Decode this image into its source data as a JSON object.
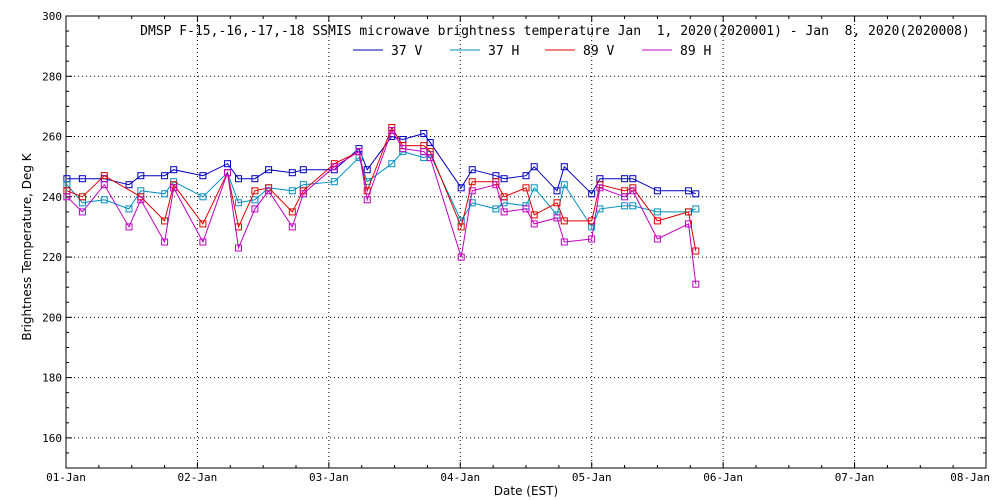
{
  "chart_data": {
    "type": "line",
    "title": "DMSP F-15,-16,-17,-18 SSMIS microwave brightness temperature Jan  1, 2020(2020001) - Jan  8, 2020(2020008)",
    "xlabel": "Date (EST)",
    "ylabel": "Brightness Temperature, Deg K",
    "xlim": [
      "2020-01-01 00:00",
      "2020-01-08 00:00"
    ],
    "ylim": [
      150,
      300
    ],
    "x_ticks": [
      "01-Jan",
      "02-Jan",
      "03-Jan",
      "04-Jan",
      "05-Jan",
      "06-Jan",
      "07-Jan",
      "08-Jan"
    ],
    "y_ticks": [
      160,
      180,
      200,
      220,
      240,
      260,
      280,
      300
    ],
    "grid": true,
    "legend_position": "top",
    "series": [
      {
        "name": "37 V",
        "color": "#0000c0",
        "points": [
          [
            "2020-01-01 00:10",
            246
          ],
          [
            "2020-01-01 03:00",
            246
          ],
          [
            "2020-01-01 07:00",
            246
          ],
          [
            "2020-01-01 11:30",
            244
          ],
          [
            "2020-01-01 13:40",
            247
          ],
          [
            "2020-01-01 18:00",
            247
          ],
          [
            "2020-01-01 19:40",
            249
          ],
          [
            "2020-01-02 01:00",
            247
          ],
          [
            "2020-01-02 05:30",
            251
          ],
          [
            "2020-01-02 07:30",
            246
          ],
          [
            "2020-01-02 10:30",
            246
          ],
          [
            "2020-01-02 13:00",
            249
          ],
          [
            "2020-01-02 17:20",
            248
          ],
          [
            "2020-01-02 19:20",
            249
          ],
          [
            "2020-01-03 01:00",
            249
          ],
          [
            "2020-01-03 05:30",
            256
          ],
          [
            "2020-01-03 07:00",
            249
          ],
          [
            "2020-01-03 11:30",
            260
          ],
          [
            "2020-01-03 13:30",
            259
          ],
          [
            "2020-01-03 17:20",
            261
          ],
          [
            "2020-01-03 18:30",
            258
          ],
          [
            "2020-01-04 00:10",
            243
          ],
          [
            "2020-01-04 02:10",
            249
          ],
          [
            "2020-01-04 06:30",
            247
          ],
          [
            "2020-01-04 08:00",
            246
          ],
          [
            "2020-01-04 12:00",
            247
          ],
          [
            "2020-01-04 13:30",
            250
          ],
          [
            "2020-01-04 17:40",
            242
          ],
          [
            "2020-01-04 19:00",
            250
          ],
          [
            "2020-01-05 00:00",
            241
          ],
          [
            "2020-01-05 01:30",
            246
          ],
          [
            "2020-01-05 06:00",
            246
          ],
          [
            "2020-01-05 07:30",
            246
          ],
          [
            "2020-01-05 12:00",
            242
          ],
          [
            "2020-01-05 17:40",
            242
          ],
          [
            "2020-01-05 19:00",
            241
          ]
        ]
      },
      {
        "name": "37 H",
        "color": "#0090c0",
        "points": [
          [
            "2020-01-01 00:10",
            244
          ],
          [
            "2020-01-01 03:00",
            238
          ],
          [
            "2020-01-01 07:00",
            239
          ],
          [
            "2020-01-01 11:30",
            236
          ],
          [
            "2020-01-01 13:40",
            242
          ],
          [
            "2020-01-01 18:00",
            241
          ],
          [
            "2020-01-01 19:40",
            245
          ],
          [
            "2020-01-02 01:00",
            240
          ],
          [
            "2020-01-02 05:30",
            248
          ],
          [
            "2020-01-02 07:30",
            238
          ],
          [
            "2020-01-02 10:30",
            239
          ],
          [
            "2020-01-02 13:00",
            243
          ],
          [
            "2020-01-02 17:20",
            242
          ],
          [
            "2020-01-02 19:20",
            244
          ],
          [
            "2020-01-03 01:00",
            245
          ],
          [
            "2020-01-03 05:30",
            253
          ],
          [
            "2020-01-03 07:00",
            245
          ],
          [
            "2020-01-03 11:30",
            251
          ],
          [
            "2020-01-03 13:30",
            255
          ],
          [
            "2020-01-03 17:20",
            253
          ],
          [
            "2020-01-03 18:30",
            254
          ],
          [
            "2020-01-04 00:10",
            232
          ],
          [
            "2020-01-04 02:10",
            238
          ],
          [
            "2020-01-04 06:30",
            236
          ],
          [
            "2020-01-04 08:00",
            238
          ],
          [
            "2020-01-04 12:00",
            237
          ],
          [
            "2020-01-04 13:30",
            243
          ],
          [
            "2020-01-04 17:40",
            234
          ],
          [
            "2020-01-04 19:00",
            244
          ],
          [
            "2020-01-05 00:00",
            230
          ],
          [
            "2020-01-05 01:30",
            236
          ],
          [
            "2020-01-05 06:00",
            237
          ],
          [
            "2020-01-05 07:30",
            237
          ],
          [
            "2020-01-05 12:00",
            235
          ],
          [
            "2020-01-05 17:40",
            235
          ],
          [
            "2020-01-05 19:00",
            236
          ]
        ]
      },
      {
        "name": "89 V",
        "color": "#e00000",
        "points": [
          [
            "2020-01-01 00:10",
            242
          ],
          [
            "2020-01-01 03:00",
            240
          ],
          [
            "2020-01-01 07:00",
            247
          ],
          [
            "2020-01-01 13:40",
            240
          ],
          [
            "2020-01-01 18:00",
            232
          ],
          [
            "2020-01-01 19:40",
            244
          ],
          [
            "2020-01-02 01:00",
            231
          ],
          [
            "2020-01-02 05:30",
            248
          ],
          [
            "2020-01-02 07:30",
            230
          ],
          [
            "2020-01-02 10:30",
            242
          ],
          [
            "2020-01-02 13:00",
            243
          ],
          [
            "2020-01-02 17:20",
            235
          ],
          [
            "2020-01-02 19:20",
            242
          ],
          [
            "2020-01-03 01:00",
            251
          ],
          [
            "2020-01-03 05:30",
            255
          ],
          [
            "2020-01-03 07:00",
            242
          ],
          [
            "2020-01-03 11:30",
            263
          ],
          [
            "2020-01-03 13:30",
            257
          ],
          [
            "2020-01-03 17:20",
            257
          ],
          [
            "2020-01-03 18:30",
            255
          ],
          [
            "2020-01-04 00:10",
            230
          ],
          [
            "2020-01-04 02:10",
            245
          ],
          [
            "2020-01-04 06:30",
            245
          ],
          [
            "2020-01-04 08:00",
            240
          ],
          [
            "2020-01-04 12:00",
            243
          ],
          [
            "2020-01-04 13:30",
            234
          ],
          [
            "2020-01-04 17:40",
            238
          ],
          [
            "2020-01-04 19:00",
            232
          ],
          [
            "2020-01-05 00:00",
            232
          ],
          [
            "2020-01-05 01:30",
            244
          ],
          [
            "2020-01-05 06:00",
            242
          ],
          [
            "2020-01-05 07:30",
            243
          ],
          [
            "2020-01-05 12:00",
            232
          ],
          [
            "2020-01-05 17:40",
            235
          ],
          [
            "2020-01-05 19:00",
            222
          ]
        ]
      },
      {
        "name": "89 H",
        "color": "#c000c0",
        "points": [
          [
            "2020-01-01 00:10",
            240
          ],
          [
            "2020-01-01 03:00",
            235
          ],
          [
            "2020-01-01 07:00",
            244
          ],
          [
            "2020-01-01 11:30",
            230
          ],
          [
            "2020-01-01 13:40",
            239
          ],
          [
            "2020-01-01 18:00",
            225
          ],
          [
            "2020-01-01 19:40",
            243
          ],
          [
            "2020-01-02 01:00",
            225
          ],
          [
            "2020-01-02 05:30",
            248
          ],
          [
            "2020-01-02 07:30",
            223
          ],
          [
            "2020-01-02 10:30",
            236
          ],
          [
            "2020-01-02 13:00",
            242
          ],
          [
            "2020-01-02 17:20",
            230
          ],
          [
            "2020-01-02 19:20",
            241
          ],
          [
            "2020-01-03 01:00",
            250
          ],
          [
            "2020-01-03 05:30",
            255
          ],
          [
            "2020-01-03 07:00",
            239
          ],
          [
            "2020-01-03 11:30",
            262
          ],
          [
            "2020-01-03 13:30",
            256
          ],
          [
            "2020-01-03 17:20",
            255
          ],
          [
            "2020-01-03 18:30",
            253
          ],
          [
            "2020-01-04 00:10",
            220
          ],
          [
            "2020-01-04 02:10",
            242
          ],
          [
            "2020-01-04 06:30",
            244
          ],
          [
            "2020-01-04 08:00",
            235
          ],
          [
            "2020-01-04 12:00",
            236
          ],
          [
            "2020-01-04 13:30",
            231
          ],
          [
            "2020-01-04 17:40",
            233
          ],
          [
            "2020-01-04 19:00",
            225
          ],
          [
            "2020-01-05 00:00",
            226
          ],
          [
            "2020-01-05 01:30",
            243
          ],
          [
            "2020-01-05 06:00",
            240
          ],
          [
            "2020-01-05 07:30",
            242
          ],
          [
            "2020-01-05 12:00",
            226
          ],
          [
            "2020-01-05 17:40",
            231
          ],
          [
            "2020-01-05 19:00",
            211
          ]
        ]
      }
    ]
  }
}
